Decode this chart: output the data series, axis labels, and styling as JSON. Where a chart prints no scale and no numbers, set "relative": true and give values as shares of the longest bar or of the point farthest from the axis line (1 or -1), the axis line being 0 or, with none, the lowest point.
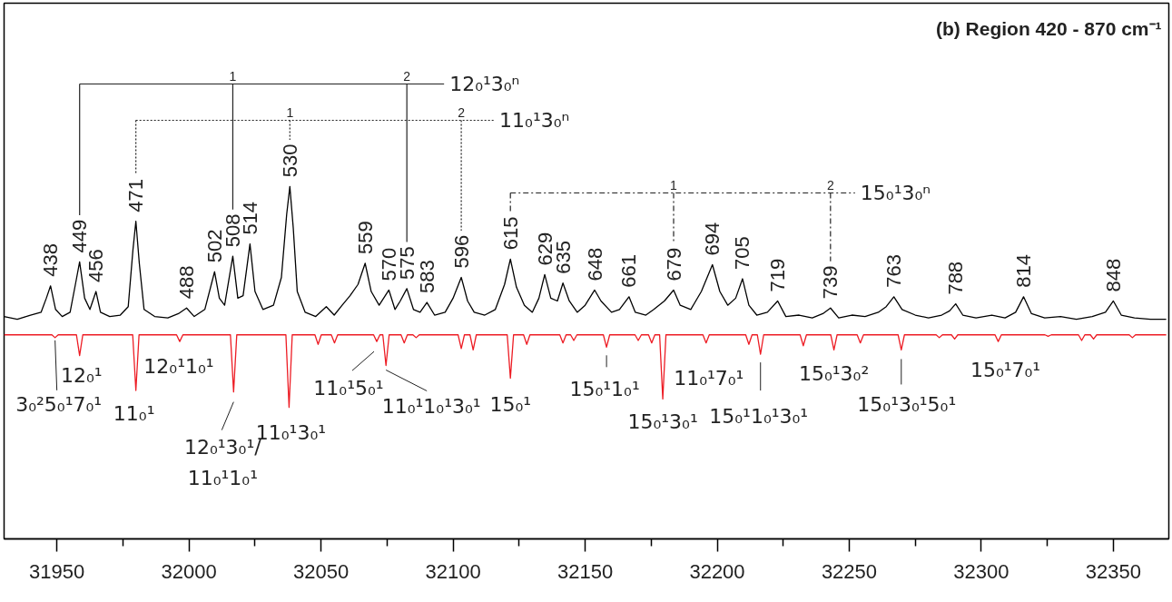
{
  "chart_data": {
    "type": "line",
    "relative": true,
    "title": "(b) Region 420 - 870 cm⁻¹",
    "xlim": [
      31930,
      32371
    ],
    "xticks": [
      31950,
      {
        "value": 31975,
        "label": null
      },
      32000,
      {
        "value": 32025,
        "label": null
      },
      32050,
      {
        "value": 32075,
        "label": null
      },
      32100,
      {
        "value": 32125,
        "label": null
      },
      32150,
      {
        "value": 32175,
        "label": null
      },
      32200,
      {
        "value": 32225,
        "label": null
      },
      32250,
      {
        "value": 32275,
        "label": null
      },
      32300,
      {
        "value": 32325,
        "label": null
      },
      32350
    ],
    "series": [
      {
        "color": "#000000",
        "x": [
          31930,
          31935,
          31940,
          31944,
          31946,
          31947.6,
          31949.5,
          31952,
          31955,
          31957,
          31958.6,
          31960.5,
          31962.5,
          31964.8,
          31966.5,
          31970,
          31974,
          31977,
          31978.8,
          31979.9,
          31981.2,
          31983,
          31987,
          31992,
          31996,
          31999.1,
          32002,
          32006,
          32009.7,
          32011.5,
          32013.5,
          32016.6,
          32018.5,
          32020.5,
          32023.1,
          32025,
          32028,
          32032,
          32035,
          32037,
          32038.2,
          32039.5,
          32041,
          32044,
          32048,
          32052,
          32055,
          32058,
          32061,
          32064,
          32066.7,
          32069,
          32072,
          32075.7,
          32078,
          32080,
          32082.5,
          32085,
          32087.5,
          32090.1,
          32093,
          32097,
          32100,
          32103.1,
          32105.5,
          32108,
          32112,
          32116,
          32119.5,
          32121.7,
          32124,
          32127,
          32130,
          32132.5,
          32134.7,
          32137,
          32139.5,
          32141.6,
          32144,
          32147,
          32150,
          32153.6,
          32156,
          32160,
          32163,
          32166.6,
          32169,
          32173,
          32176,
          32180,
          32183.5,
          32186,
          32190,
          32194,
          32198.2,
          32201,
          32204,
          32207,
          32209.6,
          32212,
          32215,
          32219,
          32222.9,
          32226,
          32231,
          32236,
          32240,
          32242.9,
          32246,
          32251,
          32256,
          32261,
          32264,
          32266.9,
          32270,
          32275,
          32280,
          32285,
          32288,
          32290.3,
          32293,
          32298,
          32304,
          32309,
          32313,
          32316,
          32319,
          32324,
          32330,
          32336,
          32342,
          32347,
          32350,
          32353,
          32358,
          32364,
          32370
        ],
        "values": [
          0.631,
          0.623,
          0.635,
          0.643,
          0.683,
          0.718,
          0.651,
          0.631,
          0.643,
          0.722,
          0.786,
          0.683,
          0.651,
          0.702,
          0.643,
          0.631,
          0.635,
          0.659,
          0.821,
          0.901,
          0.782,
          0.651,
          0.631,
          0.627,
          0.639,
          0.655,
          0.631,
          0.651,
          0.758,
          0.683,
          0.663,
          0.802,
          0.683,
          0.69,
          0.837,
          0.702,
          0.651,
          0.663,
          0.742,
          0.921,
          1,
          0.881,
          0.702,
          0.643,
          0.631,
          0.659,
          0.635,
          0.663,
          0.69,
          0.722,
          0.782,
          0.702,
          0.663,
          0.706,
          0.651,
          0.675,
          0.71,
          0.651,
          0.643,
          0.671,
          0.635,
          0.643,
          0.683,
          0.742,
          0.675,
          0.643,
          0.635,
          0.651,
          0.722,
          0.794,
          0.714,
          0.663,
          0.643,
          0.683,
          0.75,
          0.683,
          0.675,
          0.726,
          0.675,
          0.643,
          0.663,
          0.706,
          0.675,
          0.643,
          0.651,
          0.687,
          0.643,
          0.635,
          0.651,
          0.675,
          0.706,
          0.663,
          0.651,
          0.702,
          0.778,
          0.702,
          0.663,
          0.683,
          0.738,
          0.663,
          0.635,
          0.643,
          0.675,
          0.631,
          0.635,
          0.627,
          0.639,
          0.655,
          0.627,
          0.635,
          0.631,
          0.643,
          0.659,
          0.687,
          0.651,
          0.635,
          0.627,
          0.635,
          0.647,
          0.667,
          0.635,
          0.627,
          0.635,
          0.627,
          0.643,
          0.687,
          0.639,
          0.627,
          0.631,
          0.623,
          0.631,
          0.643,
          0.675,
          0.635,
          0.627,
          0.623,
          0.623
        ]
      },
      {
        "color": "#ed1c24",
        "x": [
          31930,
          31948.1,
          31949.3,
          31950.5,
          31957.4,
          31958.6,
          31959.8,
          31978.7,
          31979.9,
          31981.1,
          31995.3,
          31996.5,
          31997.7,
          32015.7,
          32016.9,
          32018.1,
          32036.7,
          32037.9,
          32039.1,
          32047.7,
          32048.9,
          32050.1,
          32053.9,
          32055.1,
          32056.3,
          32069.9,
          32071.1,
          32072.3,
          32073.4,
          32074.6,
          32075.8,
          32080.3,
          32081.5,
          32082.7,
          32084.8,
          32086.0,
          32087.2,
          32101.9,
          32103.1,
          32104.3,
          32106.4,
          32107.6,
          32108.8,
          32120.5,
          32121.7,
          32122.9,
          32126.7,
          32127.9,
          32129.1,
          32140.4,
          32141.6,
          32142.8,
          32144.5,
          32145.7,
          32146.9,
          32156.9,
          32158.1,
          32159.3,
          32168.9,
          32170.1,
          32171.3,
          32174.0,
          32175.2,
          32176.4,
          32178.2,
          32179.4,
          32180.6,
          32194.6,
          32195.8,
          32197.0,
          32210.8,
          32212.0,
          32213.2,
          32215.2,
          32216.4,
          32217.6,
          32231.4,
          32232.6,
          32233.8,
          32243.0,
          32244.2,
          32245.4,
          32253.0,
          32254.2,
          32255.4,
          32268.5,
          32269.7,
          32270.9,
          32282.9,
          32284.1,
          32285.3,
          32288.7,
          32289.9,
          32291.1,
          32305.2,
          32306.4,
          32307.6,
          32324.1,
          32325.3,
          32326.5,
          32336.8,
          32338.0,
          32339.2,
          32341.3,
          32342.5,
          32343.7,
          32356.0,
          32357.2,
          32358.4,
          32370
        ],
        "values": [
          0.579,
          0.579,
          0.571,
          0.579,
          0.579,
          0.52,
          0.579,
          0.579,
          0.421,
          0.579,
          0.579,
          0.56,
          0.579,
          0.579,
          0.417,
          0.579,
          0.579,
          0.373,
          0.579,
          0.579,
          0.552,
          0.579,
          0.579,
          0.556,
          0.579,
          0.579,
          0.56,
          0.579,
          0.579,
          0.492,
          0.579,
          0.579,
          0.556,
          0.579,
          0.579,
          0.571,
          0.579,
          0.579,
          0.54,
          0.579,
          0.579,
          0.536,
          0.579,
          0.579,
          0.456,
          0.579,
          0.579,
          0.552,
          0.579,
          0.579,
          0.556,
          0.579,
          0.579,
          0.563,
          0.579,
          0.579,
          0.544,
          0.579,
          0.579,
          0.563,
          0.579,
          0.579,
          0.556,
          0.579,
          0.579,
          0.397,
          0.579,
          0.579,
          0.556,
          0.579,
          0.579,
          0.552,
          0.579,
          0.579,
          0.524,
          0.579,
          0.579,
          0.548,
          0.579,
          0.579,
          0.536,
          0.579,
          0.579,
          0.556,
          0.579,
          0.579,
          0.536,
          0.579,
          0.579,
          0.571,
          0.579,
          0.579,
          0.567,
          0.579,
          0.579,
          0.56,
          0.579,
          0.579,
          0.575,
          0.579,
          0.579,
          0.563,
          0.579,
          0.579,
          0.567,
          0.579,
          0.579,
          0.571,
          0.579,
          0.579
        ]
      }
    ],
    "annotations": [
      {
        "text": "438",
        "x": 31947.6,
        "y": 0.718
      },
      {
        "text": "449",
        "x": 31958.6,
        "y": 0.786
      },
      {
        "text": "456",
        "x": 31964.8,
        "y": 0.702
      },
      {
        "text": "471",
        "x": 31979.9,
        "y": 0.901
      },
      {
        "text": "488",
        "x": 31999.1,
        "y": 0.655
      },
      {
        "text": "502",
        "x": 32009.7,
        "y": 0.758
      },
      {
        "text": "508",
        "x": 32016.6,
        "y": 0.802
      },
      {
        "text": "514",
        "x": 32023.1,
        "y": 0.837
      },
      {
        "text": "530",
        "x": 32038.2,
        "y": 1
      },
      {
        "text": "559",
        "x": 32066.7,
        "y": 0.782
      },
      {
        "text": "570",
        "x": 32075.7,
        "y": 0.706
      },
      {
        "text": "575",
        "x": 32082.5,
        "y": 0.71
      },
      {
        "text": "583",
        "x": 32090.1,
        "y": 0.671
      },
      {
        "text": "596",
        "x": 32103.1,
        "y": 0.742
      },
      {
        "text": "615",
        "x": 32121.7,
        "y": 0.794
      },
      {
        "text": "629",
        "x": 32134.7,
        "y": 0.75
      },
      {
        "text": "635",
        "x": 32141.6,
        "y": 0.726
      },
      {
        "text": "648",
        "x": 32153.6,
        "y": 0.706
      },
      {
        "text": "661",
        "x": 32166.6,
        "y": 0.687
      },
      {
        "text": "679",
        "x": 32183.5,
        "y": 0.706
      },
      {
        "text": "694",
        "x": 32198.2,
        "y": 0.778
      },
      {
        "text": "705",
        "x": 32209.6,
        "y": 0.738
      },
      {
        "text": "719",
        "x": 32222.9,
        "y": 0.675
      },
      {
        "text": "739",
        "x": 32242.9,
        "y": 0.655
      },
      {
        "text": "763",
        "x": 32266.9,
        "y": 0.687
      },
      {
        "text": "788",
        "x": 32290.3,
        "y": 0.667
      },
      {
        "text": "814",
        "x": 32316.0,
        "y": 0.687
      },
      {
        "text": "848",
        "x": 32350.0,
        "y": 0.675
      },
      {
        "text": "3₀²5₀¹7₀¹",
        "x": 31949.3,
        "y": 0.571
      },
      {
        "text": "12₀¹",
        "x": 31958.6,
        "y": 0.52
      },
      {
        "text": "11₀¹",
        "x": 31979.9,
        "y": 0.421
      },
      {
        "text": "12₀¹1₀¹",
        "x": 31996.5,
        "y": 0.56
      },
      {
        "text": "12₀¹3₀¹/\n11₀¹1₀¹",
        "x": 32016.9,
        "y": 0.417
      },
      {
        "text": "11₀¹3₀¹",
        "x": 32037.9,
        "y": 0.373
      },
      {
        "text": "11₀¹5₀¹",
        "x": 32071.1,
        "y": 0.56
      },
      {
        "text": "11₀¹1₀¹3₀¹",
        "x": 32074.6,
        "y": 0.492
      },
      {
        "text": "15₀¹",
        "x": 32121.7,
        "y": 0.456
      },
      {
        "text": "15₀¹1₀¹",
        "x": 32158.1,
        "y": 0.544
      },
      {
        "text": "15₀¹3₀¹",
        "x": 32179.4,
        "y": 0.397
      },
      {
        "text": "11₀¹7₀¹",
        "x": 32195.8,
        "y": 0.556
      },
      {
        "text": "15₀¹1₀¹3₀¹",
        "x": 32216.4,
        "y": 0.524
      },
      {
        "text": "15₀¹3₀²",
        "x": 32244.2,
        "y": 0.536
      },
      {
        "text": "15₀¹3₀¹5₀¹",
        "x": 32269.7,
        "y": 0.536
      },
      {
        "text": "15₀¹7₀¹",
        "x": 32306.4,
        "y": 0.56
      },
      "12₀¹3₀ⁿ",
      "1",
      "2",
      "11₀¹3₀ⁿ",
      "1",
      "2",
      "15₀¹3₀ⁿ",
      "1",
      "2"
    ]
  }
}
